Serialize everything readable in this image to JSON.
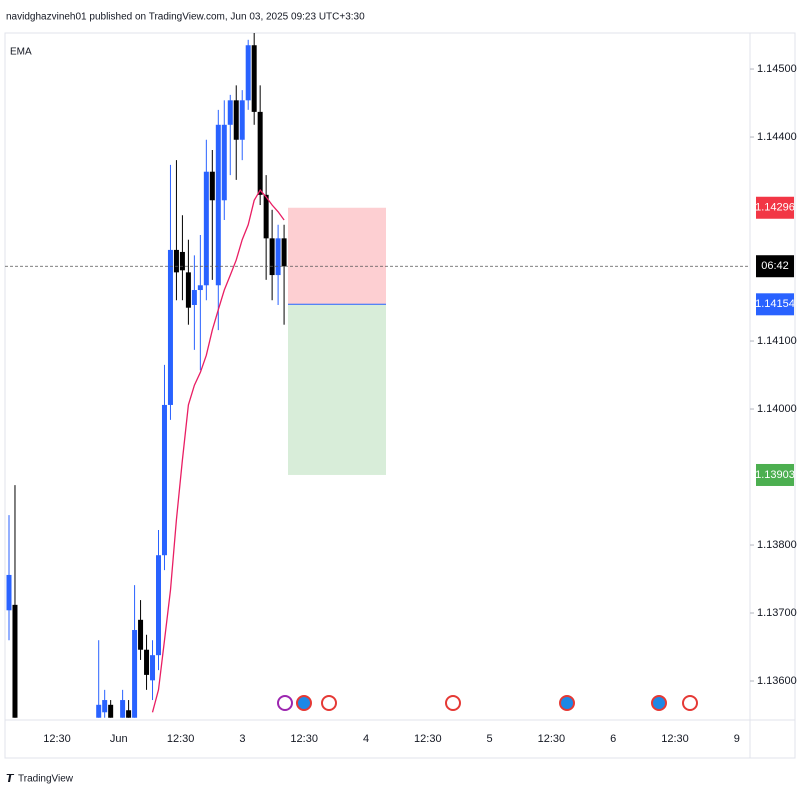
{
  "header": "navidghazvineh01 published on TradingView.com, Jun 03, 2025 09:23 UTC+3:30",
  "footer": "TradingView",
  "chart_data": {
    "type": "candlestick",
    "indicator": "EMA",
    "up_color": "#2962ff",
    "down_color": "#000000",
    "ema_color": "#e91e63",
    "ylim": [
      1.135456,
      1.14553
    ],
    "yticks": [
      {
        "value": 1.136,
        "label": "1.13600"
      },
      {
        "value": 1.137,
        "label": "1.13700"
      },
      {
        "value": 1.138,
        "label": "1.13800"
      },
      {
        "value": 1.14,
        "label": "1.14000"
      },
      {
        "value": 1.141,
        "label": "1.14100"
      },
      {
        "value": 1.144,
        "label": "1.14400"
      },
      {
        "value": 1.145,
        "label": "1.14500"
      }
    ],
    "x_labels": [
      "12:30",
      "Jun",
      "12:30",
      "3",
      "12:30",
      "4",
      "12:30",
      "5",
      "12:30",
      "6",
      "12:30",
      "9"
    ],
    "open": [
      1.13704,
      1.13712,
      null,
      null,
      null,
      null,
      null,
      null,
      null,
      null,
      null,
      null,
      null,
      null,
      null,
      1.13546,
      1.13554,
      1.13565,
      null,
      1.13546,
      1.13557,
      1.13546,
      1.1369,
      1.13646,
      1.13601,
      1.13638,
      1.13785,
      1.14006,
      1.14234,
      1.14231,
      1.14201,
      1.14153,
      1.14175,
      1.14182,
      1.14349,
      1.14182,
      1.14307,
      1.14418,
      1.14454,
      1.14396,
      1.14454,
      1.14535,
      1.14437,
      1.14315,
      1.14251,
      1.14197,
      1.14251
    ],
    "high": [
      1.13844,
      1.13888,
      null,
      null,
      null,
      null,
      null,
      null,
      null,
      null,
      null,
      null,
      null,
      null,
      null,
      1.1366,
      1.13587,
      1.13572,
      null,
      1.13587,
      1.13572,
      1.13741,
      1.13719,
      1.13668,
      1.1366,
      1.13822,
      1.14065,
      1.14359,
      1.14366,
      1.14285,
      1.14249,
      1.14226,
      1.14256,
      1.14396,
      1.14381,
      1.1444,
      1.14454,
      1.14462,
      1.14476,
      1.14469,
      1.14543,
      1.14553,
      1.14476,
      1.14344,
      1.14293,
      1.14271,
      1.14271
    ],
    "low": [
      1.1366,
      1.13546,
      null,
      null,
      null,
      null,
      null,
      null,
      null,
      null,
      null,
      null,
      null,
      null,
      null,
      1.13546,
      1.13546,
      1.13546,
      null,
      1.13546,
      1.13546,
      1.13546,
      1.13631,
      1.13587,
      1.13572,
      1.13616,
      1.13763,
      1.13984,
      1.1416,
      1.1416,
      1.14124,
      1.14087,
      1.14057,
      1.1416,
      1.1419,
      1.14116,
      1.14278,
      1.14344,
      1.14337,
      1.14366,
      1.1444,
      1.14418,
      1.143,
      1.1419,
      1.1416,
      1.14153,
      1.14124
    ],
    "close": [
      1.13756,
      1.13546,
      null,
      null,
      null,
      null,
      null,
      null,
      null,
      null,
      null,
      null,
      null,
      null,
      null,
      1.13565,
      1.13572,
      1.13546,
      null,
      1.13572,
      1.13546,
      1.13675,
      1.13646,
      1.13609,
      1.13638,
      1.13785,
      1.14006,
      1.14234,
      1.14201,
      1.14204,
      1.14149,
      1.14175,
      1.14182,
      1.14349,
      1.14307,
      1.14418,
      1.14418,
      1.14454,
      1.14396,
      1.14454,
      1.14535,
      1.14437,
      1.14315,
      1.14251,
      1.14197,
      1.14251,
      1.1421
    ],
    "ema": [
      null,
      null,
      null,
      null,
      null,
      null,
      null,
      null,
      null,
      null,
      null,
      null,
      null,
      null,
      null,
      null,
      null,
      null,
      null,
      null,
      null,
      null,
      null,
      null,
      1.13554,
      1.13587,
      1.1366,
      1.13734,
      1.13837,
      1.13925,
      1.14006,
      1.14035,
      1.14054,
      1.14079,
      1.14116,
      1.14146,
      1.14175,
      1.14197,
      1.14219,
      1.14249,
      1.14271,
      1.14307,
      1.14322,
      1.14312,
      1.143,
      1.1429,
      1.14278
    ],
    "countdown": "06:42",
    "position": {
      "stop": 1.14296,
      "entry": 1.14154,
      "target": 1.13903,
      "value_labels": {
        "stop": "1.14296",
        "entry": "1.14154",
        "target": "1.13903"
      }
    }
  }
}
